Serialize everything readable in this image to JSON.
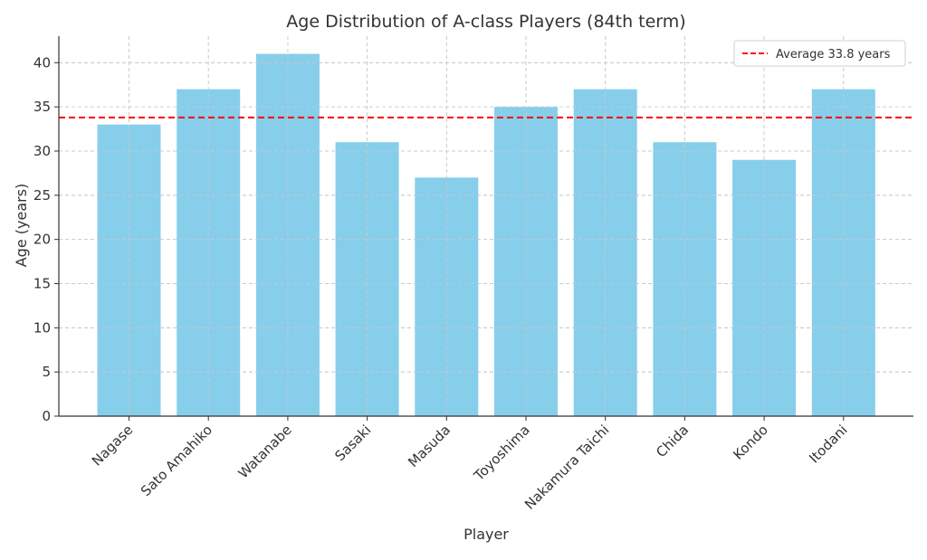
{
  "chart_data": {
    "type": "bar",
    "title": "Age Distribution of A-class Players (84th term)",
    "xlabel": "Player",
    "ylabel": "Age (years)",
    "categories": [
      "Nagase",
      "Sato Amahiko",
      "Watanabe",
      "Sasaki",
      "Masuda",
      "Toyoshima",
      "Nakamura Taichi",
      "Chida",
      "Kondo",
      "Itodani"
    ],
    "values": [
      33,
      37,
      41,
      31,
      27,
      35,
      37,
      31,
      29,
      37
    ],
    "ylim": [
      0,
      43
    ],
    "yticks": [
      0,
      5,
      10,
      15,
      20,
      25,
      30,
      35,
      40
    ],
    "bar_color": "#87ceeb",
    "grid": true,
    "reference_line": {
      "value": 33.8,
      "label": "Average 33.8 years",
      "color": "#ff0000",
      "style": "dashed"
    },
    "legend_position": "top-right"
  }
}
